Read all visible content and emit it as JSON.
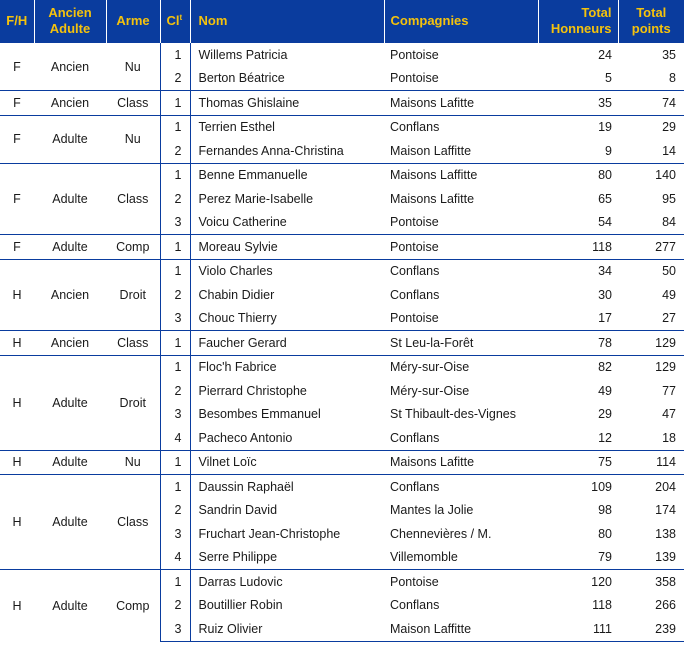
{
  "headers": {
    "fh": "F/H",
    "ancien_l1": "Ancien",
    "ancien_l2": "Adulte",
    "arme": "Arme",
    "cl": "Cl",
    "cl_sup": "t",
    "nom": "Nom",
    "compagnies": "Compagnies",
    "honneurs_l1": "Total",
    "honneurs_l2": "Honneurs",
    "points_l1": "Total",
    "points_l2": "points"
  },
  "groups": [
    {
      "fh": "F",
      "categorie": "Ancien",
      "arme": "Nu",
      "rows": [
        {
          "cl": "1",
          "nom": "Willems Patricia",
          "compagnie": "Pontoise",
          "honneurs": "24",
          "points": "35"
        },
        {
          "cl": "2",
          "nom": "Berton Béatrice",
          "compagnie": "Pontoise",
          "honneurs": "5",
          "points": "8"
        }
      ]
    },
    {
      "fh": "F",
      "categorie": "Ancien",
      "arme": "Class",
      "rows": [
        {
          "cl": "1",
          "nom": "Thomas Ghislaine",
          "compagnie": "Maisons Lafitte",
          "honneurs": "35",
          "points": "74"
        }
      ]
    },
    {
      "fh": "F",
      "categorie": "Adulte",
      "arme": "Nu",
      "rows": [
        {
          "cl": "1",
          "nom": "Terrien Esthel",
          "compagnie": "Conflans",
          "honneurs": "19",
          "points": "29"
        },
        {
          "cl": "2",
          "nom": "Fernandes Anna-Christina",
          "compagnie": "Maison Laffitte",
          "honneurs": "9",
          "points": "14"
        }
      ]
    },
    {
      "fh": "F",
      "categorie": "Adulte",
      "arme": "Class",
      "rows": [
        {
          "cl": "1",
          "nom": "Benne Emmanuelle",
          "compagnie": "Maisons Laffitte",
          "honneurs": "80",
          "points": "140"
        },
        {
          "cl": "2",
          "nom": "Perez Marie-Isabelle",
          "compagnie": "Maisons Lafitte",
          "honneurs": "65",
          "points": "95"
        },
        {
          "cl": "3",
          "nom": "Voicu Catherine",
          "compagnie": "Pontoise",
          "honneurs": "54",
          "points": "84"
        }
      ]
    },
    {
      "fh": "F",
      "categorie": "Adulte",
      "arme": "Comp",
      "rows": [
        {
          "cl": "1",
          "nom": "Moreau Sylvie",
          "compagnie": "Pontoise",
          "honneurs": "118",
          "points": "277"
        }
      ]
    },
    {
      "fh": "H",
      "categorie": "Ancien",
      "arme": "Droit",
      "rows": [
        {
          "cl": "1",
          "nom": "Violo Charles",
          "compagnie": "Conflans",
          "honneurs": "34",
          "points": "50"
        },
        {
          "cl": "2",
          "nom": "Chabin Didier",
          "compagnie": "Conflans",
          "honneurs": "30",
          "points": "49"
        },
        {
          "cl": "3",
          "nom": "Chouc Thierry",
          "compagnie": "Pontoise",
          "honneurs": "17",
          "points": "27"
        }
      ]
    },
    {
      "fh": "H",
      "categorie": "Ancien",
      "arme": "Class",
      "rows": [
        {
          "cl": "1",
          "nom": "Faucher Gerard",
          "compagnie": "St Leu-la-Forêt",
          "honneurs": "78",
          "points": "129"
        }
      ]
    },
    {
      "fh": "H",
      "categorie": "Adulte",
      "arme": "Droit",
      "rows": [
        {
          "cl": "1",
          "nom": "Floc'h Fabrice",
          "compagnie": "Méry-sur-Oise",
          "honneurs": "82",
          "points": "129"
        },
        {
          "cl": "2",
          "nom": "Pierrard Christophe",
          "compagnie": "Méry-sur-Oise",
          "honneurs": "49",
          "points": "77"
        },
        {
          "cl": "3",
          "nom": "Besombes Emmanuel",
          "compagnie": "St Thibault-des-Vignes",
          "honneurs": "29",
          "points": "47"
        },
        {
          "cl": "4",
          "nom": "Pacheco Antonio",
          "compagnie": "Conflans",
          "honneurs": "12",
          "points": "18"
        }
      ]
    },
    {
      "fh": "H",
      "categorie": "Adulte",
      "arme": "Nu",
      "rows": [
        {
          "cl": "1",
          "nom": "Vilnet Loïc",
          "compagnie": "Maisons Lafitte",
          "honneurs": "75",
          "points": "114"
        }
      ]
    },
    {
      "fh": "H",
      "categorie": "Adulte",
      "arme": "Class",
      "rows": [
        {
          "cl": "1",
          "nom": "Daussin Raphaël",
          "compagnie": "Conflans",
          "honneurs": "109",
          "points": "204"
        },
        {
          "cl": "2",
          "nom": "Sandrin David",
          "compagnie": "Mantes la Jolie",
          "honneurs": "98",
          "points": "174"
        },
        {
          "cl": "3",
          "nom": "Fruchart Jean-Christophe",
          "compagnie": "Chennevières / M.",
          "honneurs": "80",
          "points": "138"
        },
        {
          "cl": "4",
          "nom": "Serre Philippe",
          "compagnie": "Villemomble",
          "honneurs": "79",
          "points": "139"
        }
      ]
    },
    {
      "fh": "H",
      "categorie": "Adulte",
      "arme": "Comp",
      "rows": [
        {
          "cl": "1",
          "nom": "Darras Ludovic",
          "compagnie": "Pontoise",
          "honneurs": "120",
          "points": "358"
        },
        {
          "cl": "2",
          "nom": "Boutillier Robin",
          "compagnie": "Conflans",
          "honneurs": "118",
          "points": "266"
        },
        {
          "cl": "3",
          "nom": "Ruiz Olivier",
          "compagnie": "Maison Laffitte",
          "honneurs": "111",
          "points": "239"
        }
      ]
    }
  ]
}
